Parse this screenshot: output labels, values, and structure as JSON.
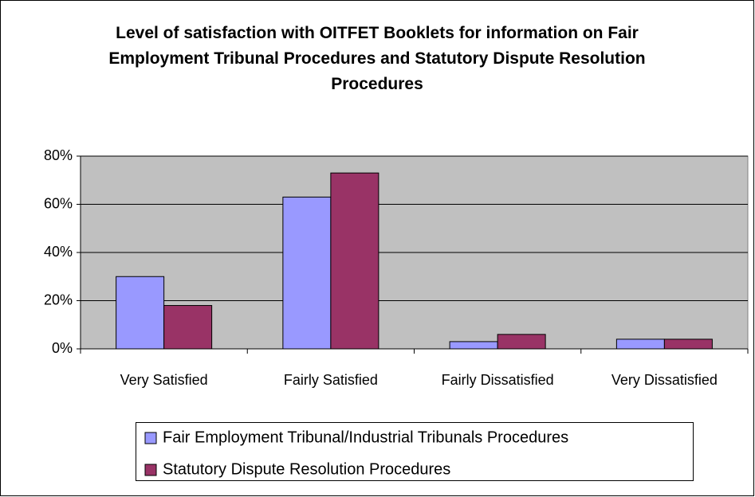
{
  "chart_data": {
    "type": "bar",
    "title": "Level of satisfaction with OITFET Booklets for information on Fair Employment Tribunal Procedures and Statutory Dispute Resolution Procedures",
    "categories": [
      "Very Satisfied",
      "Fairly Satisfied",
      "Fairly Dissatisfied",
      "Very Dissatisfied"
    ],
    "series": [
      {
        "name": "Fair Employment Tribunal/Industrial Tribunals Procedures",
        "color": "#9999ff",
        "values": [
          30,
          63,
          3,
          4
        ]
      },
      {
        "name": "Statutory Dispute Resolution Procedures",
        "color": "#993366",
        "values": [
          18,
          73,
          6,
          4
        ]
      }
    ],
    "ylim": [
      0,
      80
    ],
    "yticks": [
      {
        "value": 0,
        "label": "0%"
      },
      {
        "value": 20,
        "label": "20%"
      },
      {
        "value": 40,
        "label": "40%"
      },
      {
        "value": 60,
        "label": "60%"
      },
      {
        "value": 80,
        "label": "80%"
      }
    ],
    "grid": true,
    "legend": "bottom"
  }
}
